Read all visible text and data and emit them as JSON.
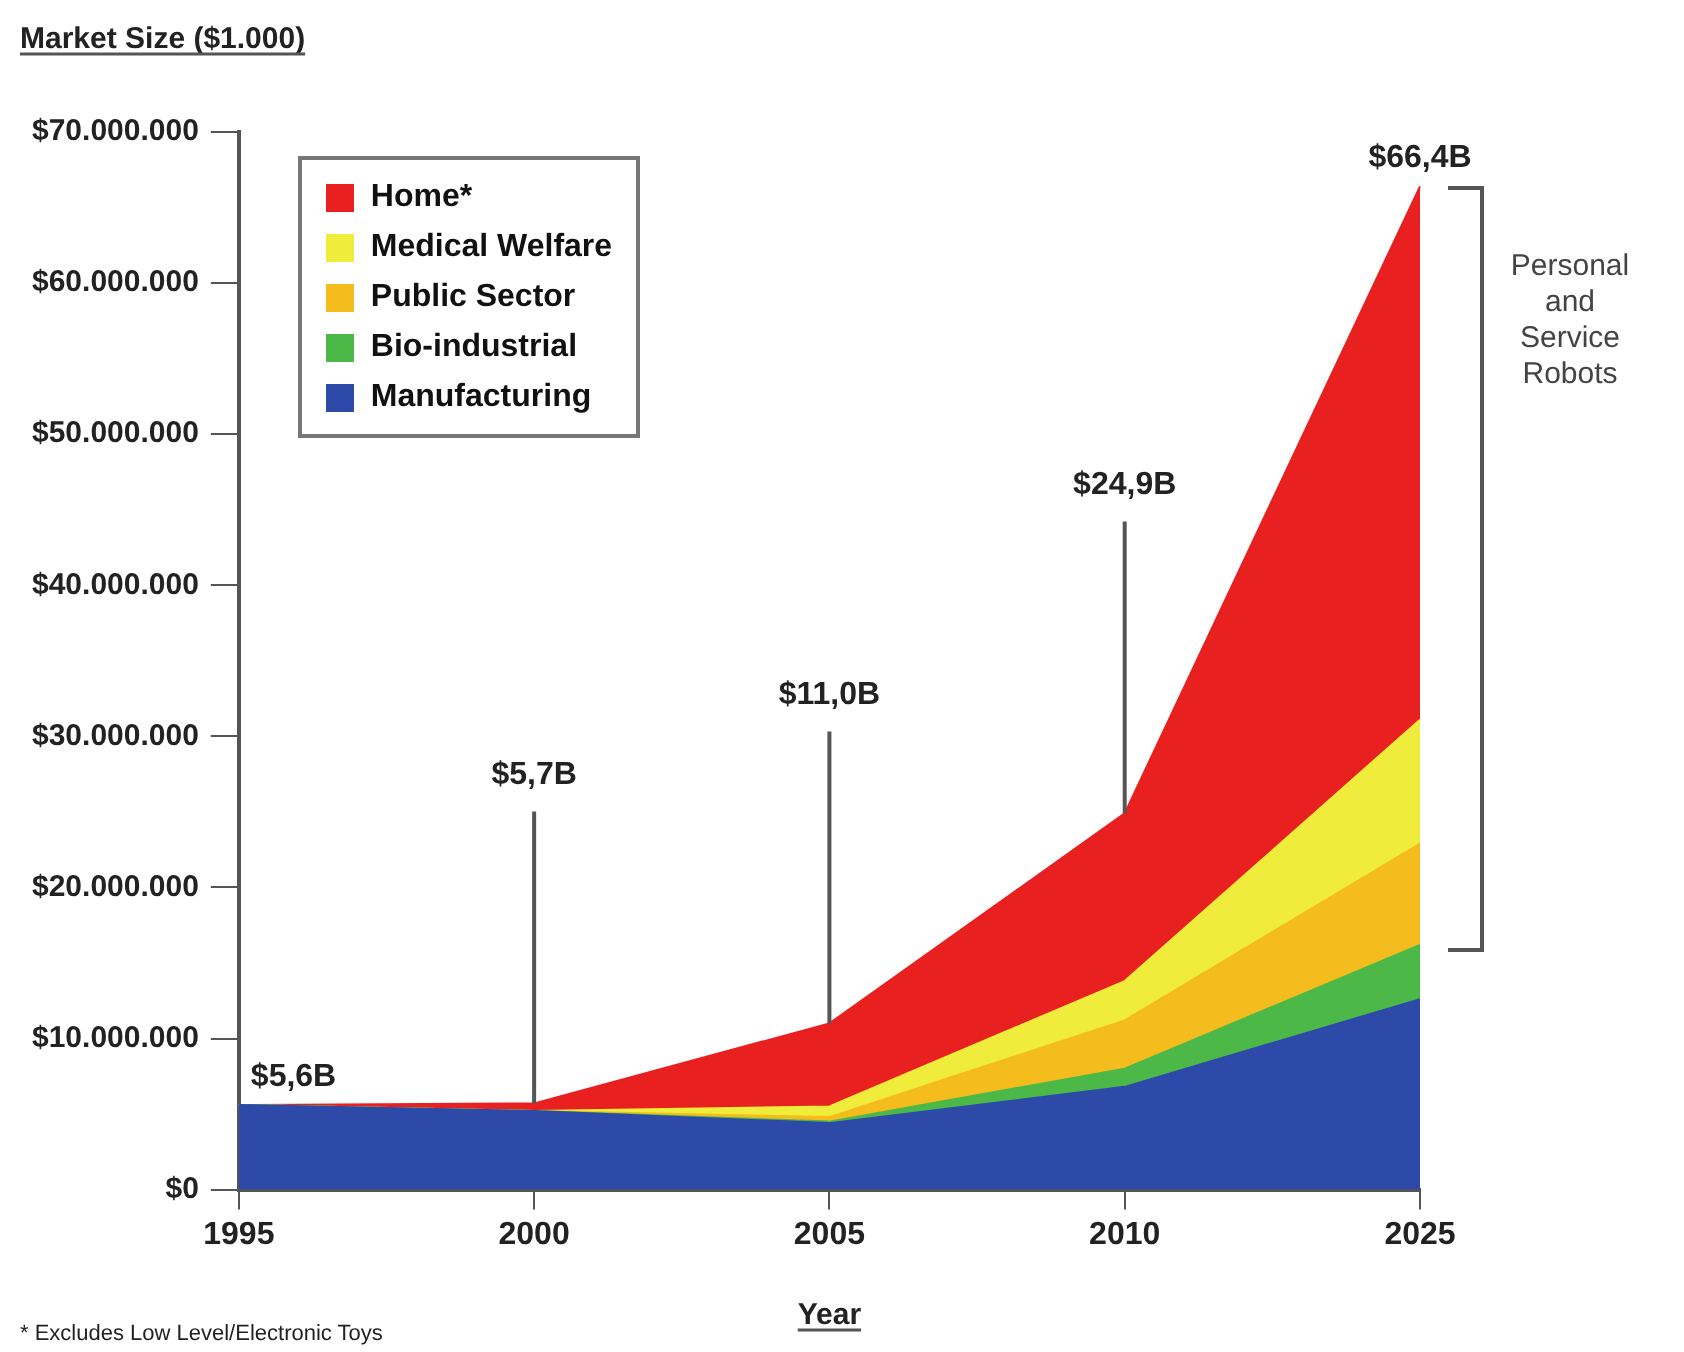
{
  "chart_data": {
    "type": "area",
    "stacked": true,
    "ylabel": "Market Size ($1.000)",
    "xlabel": "Year",
    "categories": [
      "1995",
      "2000",
      "2005",
      "2010",
      "2025"
    ],
    "series": [
      {
        "name": "Manufacturing",
        "color": "#2e4aa8",
        "values": [
          5600000,
          5200000,
          4400000,
          6800000,
          12600000
        ]
      },
      {
        "name": "Bio-industrial",
        "color": "#4cb848",
        "values": [
          0,
          0,
          100000,
          1200000,
          3600000
        ]
      },
      {
        "name": "Public Sector",
        "color": "#f4bc1c",
        "values": [
          0,
          0,
          300000,
          3200000,
          6700000
        ]
      },
      {
        "name": "Medical Welfare",
        "color": "#f0ec3c",
        "values": [
          0,
          0,
          700000,
          2600000,
          8200000
        ]
      },
      {
        "name": "Home*",
        "color": "#e8201f",
        "values": [
          0,
          500000,
          5500000,
          11100000,
          35300000
        ]
      }
    ],
    "ylim": [
      0,
      70000000
    ],
    "yticks": [
      {
        "value": 0,
        "label": "$0"
      },
      {
        "value": 10000000,
        "label": "$10.000.000"
      },
      {
        "value": 20000000,
        "label": "$20.000.000"
      },
      {
        "value": 30000000,
        "label": "$30.000.000"
      },
      {
        "value": 40000000,
        "label": "$40.000.000"
      },
      {
        "value": 50000000,
        "label": "$50.000.000"
      },
      {
        "value": 60000000,
        "label": "$60.000.000"
      },
      {
        "value": 70000000,
        "label": "$70.000.000"
      }
    ],
    "grid": false,
    "legend": "top left",
    "annotations": [
      "Personal and Service Robots",
      {
        "text": "$5,6B",
        "x": "1995",
        "y": 5600000
      },
      {
        "text": "$5,7B",
        "x": "2000",
        "y": 5700000
      },
      {
        "text": "$11,0B",
        "x": "2005",
        "y": 11000000
      },
      {
        "text": "$24,9B",
        "x": "2010",
        "y": 24900000
      },
      {
        "text": "$66,4B",
        "x": "2025",
        "y": 66400000
      },
      "* Excludes Low Level/Electronic Toys"
    ]
  }
}
